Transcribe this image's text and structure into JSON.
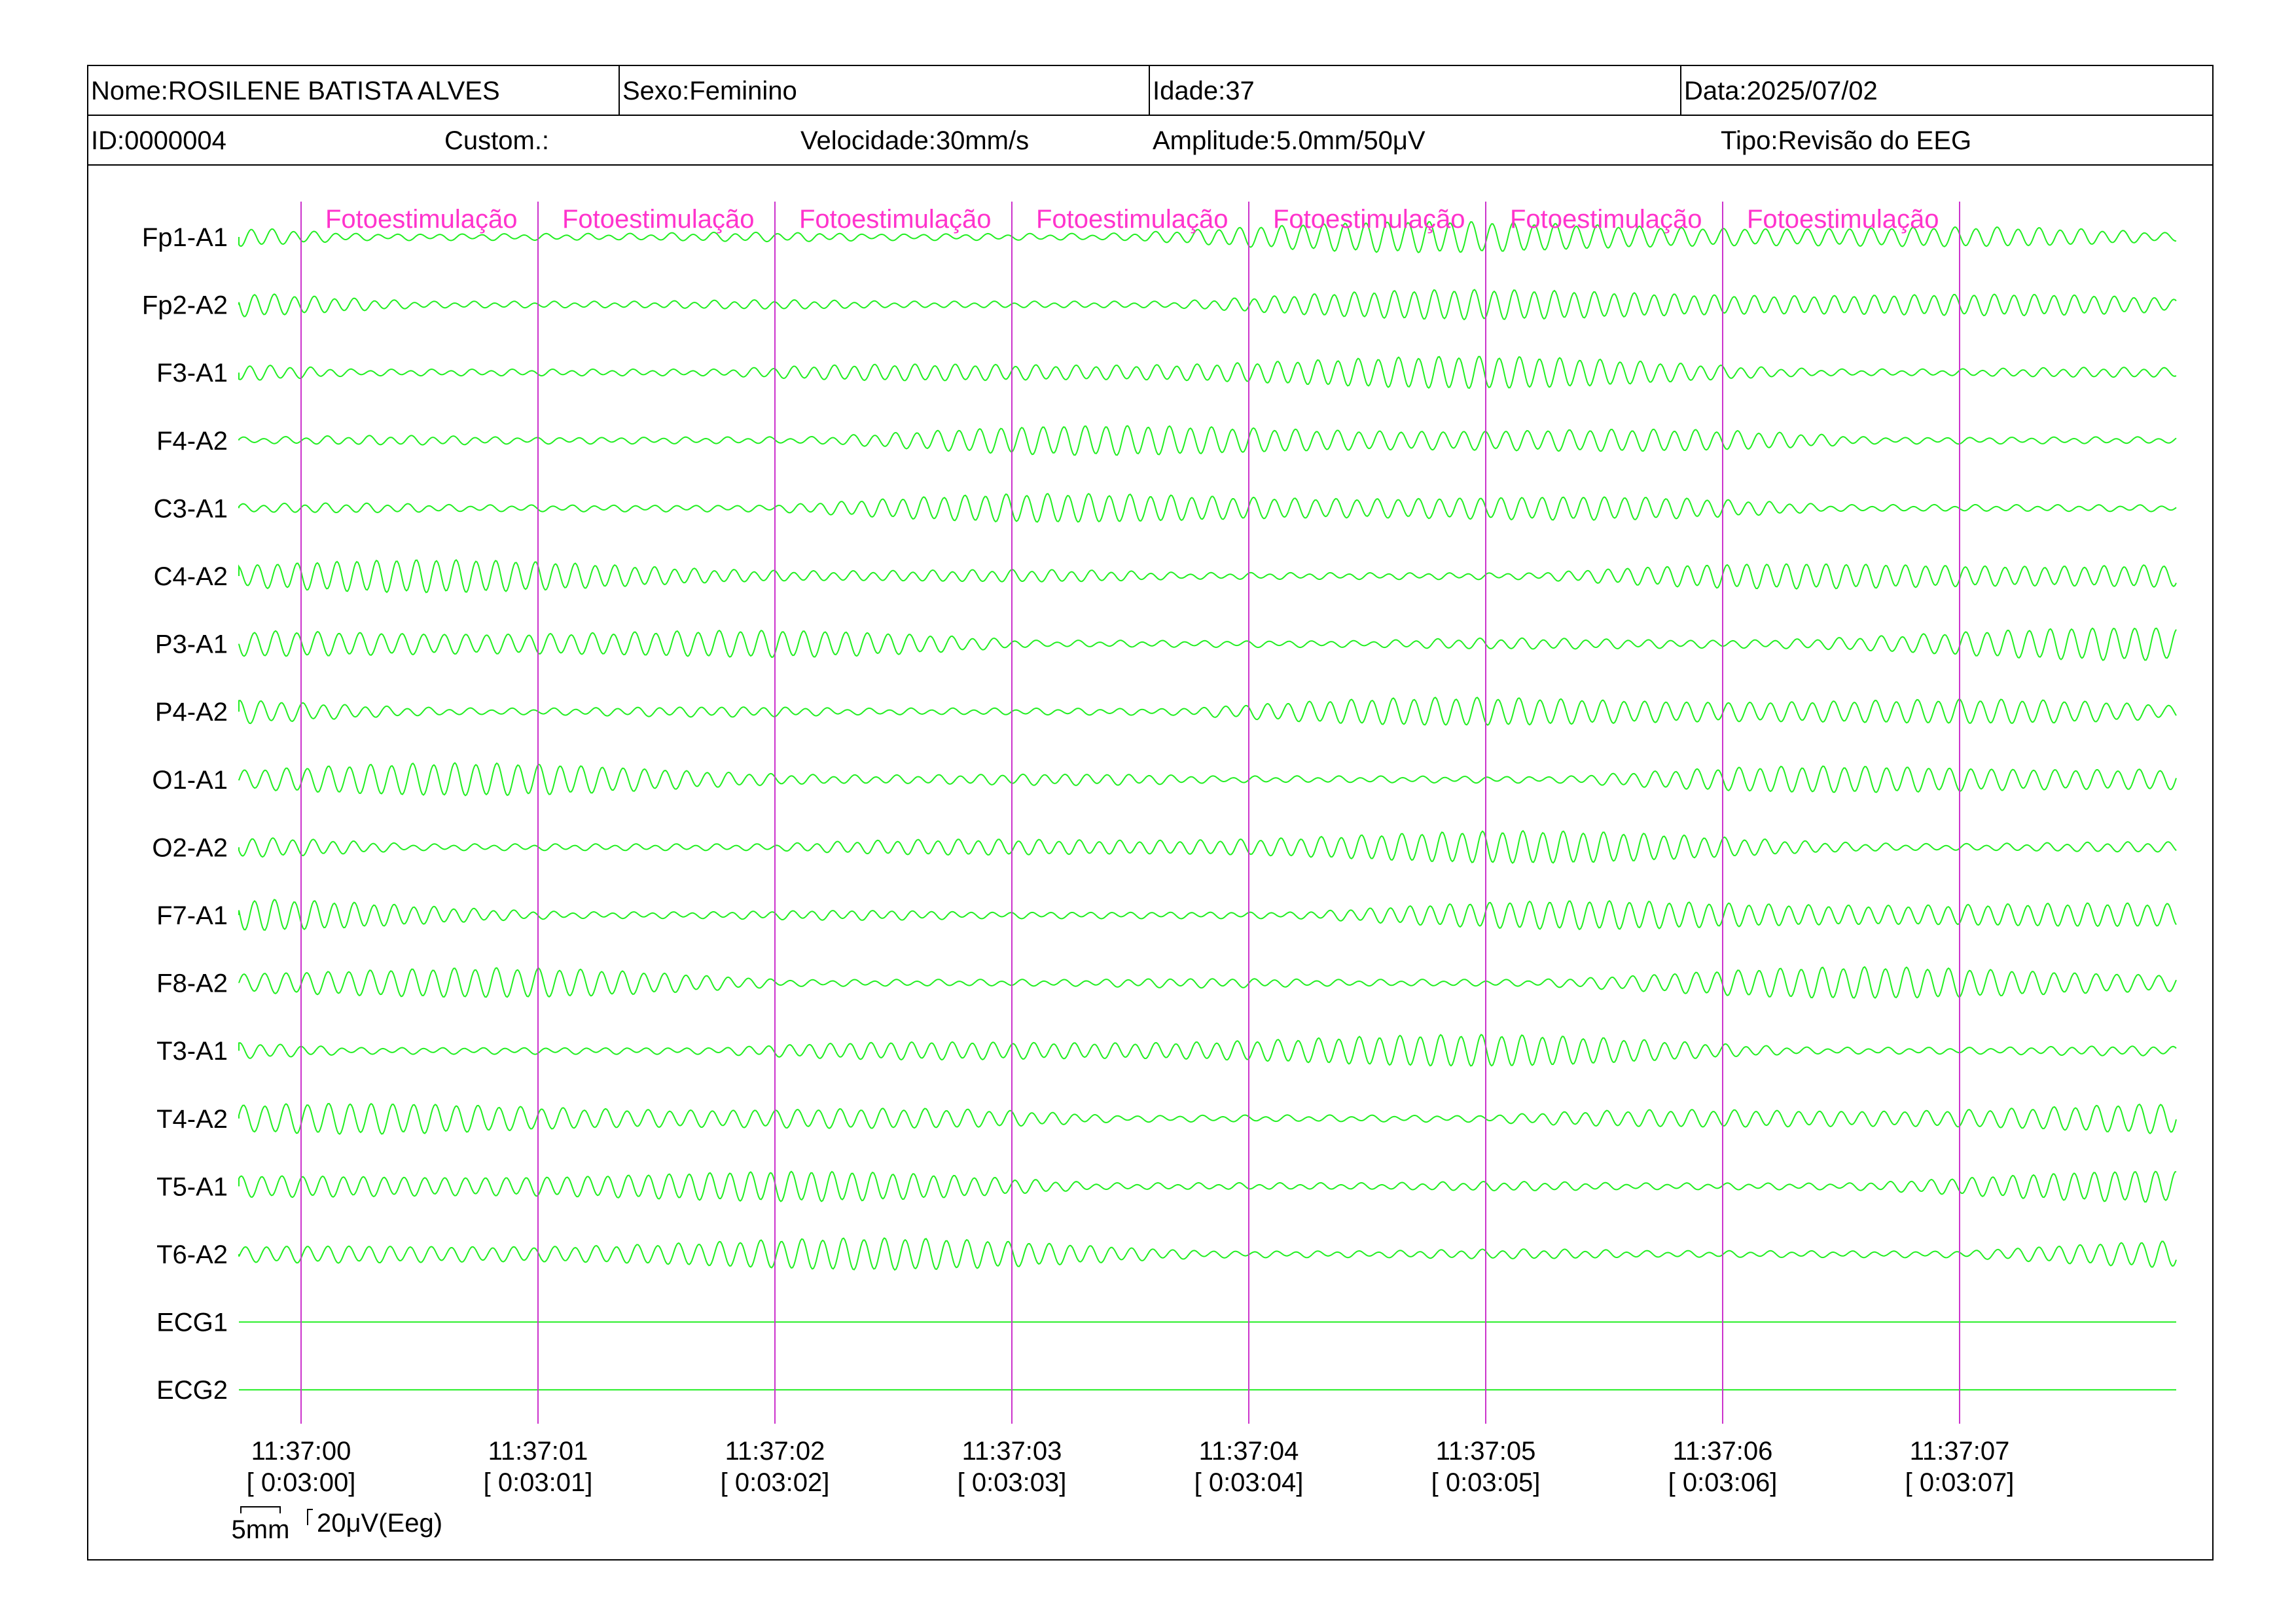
{
  "header": {
    "nome": "Nome:ROSILENE BATISTA ALVES",
    "sexo": "Sexo:Feminino",
    "idade": "Idade:37",
    "data": "Data:2025/07/02",
    "id": "ID:0000004",
    "custom": "Custom.:",
    "velocidade": "Velocidade:30mm/s",
    "amplitude": "Amplitude:5.0mm/50μV",
    "tipo": "Tipo:Revisão do EEG"
  },
  "colors": {
    "trace": "#22ee22",
    "marker": "#cc33cc",
    "annotation": "#ff33cc",
    "border": "#000000"
  },
  "scale_bar": {
    "time_label": "5mm",
    "amp_label": "20μV(Eeg)"
  },
  "chart_data": {
    "type": "line",
    "title": "",
    "xlabel": "",
    "ylabel": "",
    "grid": false,
    "channels": [
      "Fp1-A1",
      "Fp2-A2",
      "F3-A1",
      "F4-A2",
      "C3-A1",
      "C4-A2",
      "P3-A1",
      "P4-A2",
      "O1-A1",
      "O2-A2",
      "F7-A1",
      "F8-A2",
      "T3-A1",
      "T4-A2",
      "T5-A1",
      "T6-A2",
      "ECG1",
      "ECG2"
    ],
    "flat_channels": [
      "ECG1",
      "ECG2"
    ],
    "x_range_seconds": [
      -0.26,
      7.9
    ],
    "x_ticks": [
      {
        "clock": "11:37:00",
        "elapsed": "[ 0:03:00]"
      },
      {
        "clock": "11:37:01",
        "elapsed": "[ 0:03:01]"
      },
      {
        "clock": "11:37:02",
        "elapsed": "[ 0:03:02]"
      },
      {
        "clock": "11:37:03",
        "elapsed": "[ 0:03:03]"
      },
      {
        "clock": "11:37:04",
        "elapsed": "[ 0:03:04]"
      },
      {
        "clock": "11:37:05",
        "elapsed": "[ 0:03:05]"
      },
      {
        "clock": "11:37:06",
        "elapsed": "[ 0:03:06]"
      },
      {
        "clock": "11:37:07",
        "elapsed": "[ 0:03:07]"
      }
    ],
    "annotations": [
      "Fotoestimulação",
      "Fotoestimulação",
      "Fotoestimulação",
      "Fotoestimulação",
      "Fotoestimulação",
      "Fotoestimulação",
      "Fotoestimulação"
    ],
    "dominant_frequency_hz": 11.5
  }
}
